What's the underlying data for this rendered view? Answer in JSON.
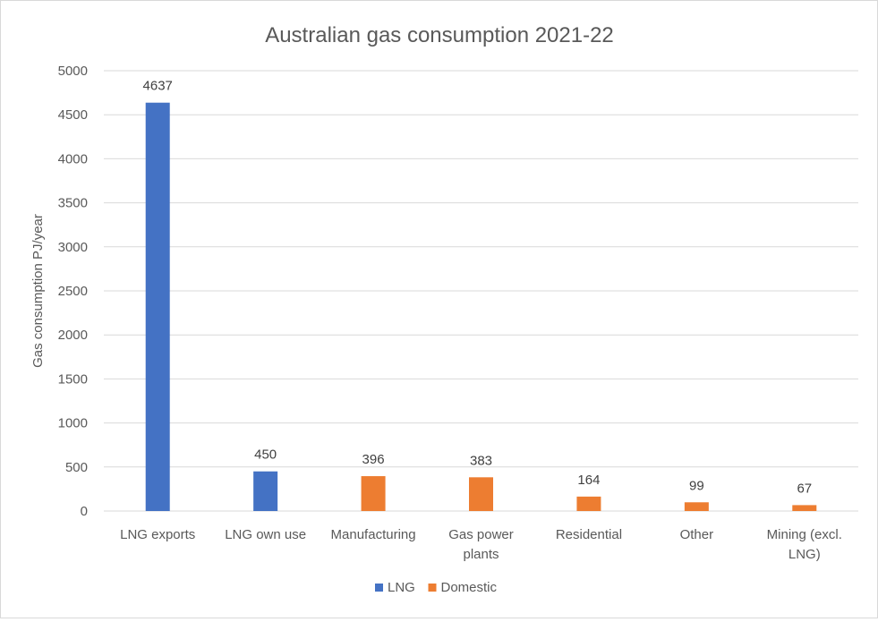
{
  "chart_data": {
    "type": "bar",
    "title": "Australian gas consumption 2021-22",
    "ylabel": "Gas consumption PJ/year",
    "xlabel": "",
    "ylim": [
      0,
      5000
    ],
    "yticks": [
      0,
      500,
      1000,
      1500,
      2000,
      2500,
      3000,
      3500,
      4000,
      4500,
      5000
    ],
    "grid": true,
    "legend_position": "bottom",
    "categories": [
      [
        "LNG exports"
      ],
      [
        "LNG own use"
      ],
      [
        "Manufacturing"
      ],
      [
        "Gas power",
        "plants"
      ],
      [
        "Residential"
      ],
      [
        "Other"
      ],
      [
        "Mining (excl.",
        "LNG)"
      ]
    ],
    "series": [
      {
        "name": "LNG",
        "color": "#4472c4",
        "values": [
          4637,
          450,
          null,
          null,
          null,
          null,
          null
        ]
      },
      {
        "name": "Domestic",
        "color": "#ed7d31",
        "values": [
          null,
          null,
          396,
          383,
          164,
          99,
          67
        ]
      }
    ]
  }
}
